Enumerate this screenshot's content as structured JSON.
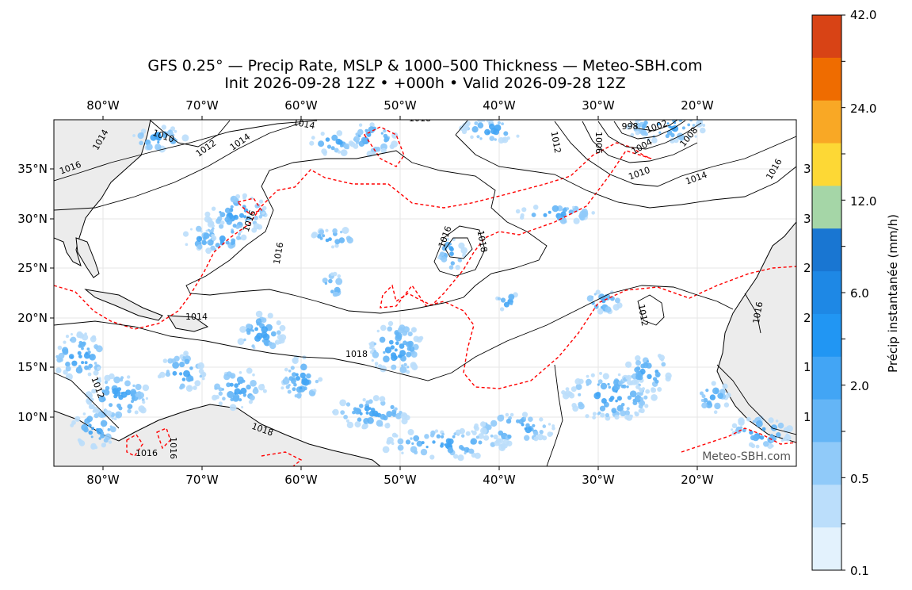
{
  "title": {
    "line1": "GFS 0.25° — Precip Rate, MSLP & 1000–500 Thickness — Meteo-SBH.com",
    "line2": "Init 2026-09-28 12Z • +000h • Valid 2026-09-28 12Z"
  },
  "map": {
    "lon_range": [
      -85,
      -10
    ],
    "lat_range": [
      5,
      40
    ],
    "lon_ticks": [
      "80°W",
      "70°W",
      "60°W",
      "50°W",
      "40°W",
      "30°W",
      "20°W"
    ],
    "lat_ticks": [
      "35°N",
      "30°N",
      "25°N",
      "20°N",
      "15°N",
      "10°N"
    ],
    "watermark": "Meteo-SBH.com",
    "land_color": "#ececec",
    "thickness_color": "#ff0000",
    "isobar_color": "#000000",
    "isobar_labels": [
      "1010",
      "1012",
      "1014",
      "1014",
      "1014",
      "1016",
      "1016",
      "1016",
      "1016",
      "1018",
      "1018",
      "1018",
      "1012",
      "1012",
      "1014",
      "1016",
      "1014",
      "1016",
      "998",
      "1002",
      "1004",
      "1006",
      "1008",
      "1010",
      "1016",
      "1012",
      "1016",
      "1018"
    ],
    "edge_labels": [
      "3",
      "3",
      "2",
      "2",
      "1",
      "1"
    ]
  },
  "colorbar": {
    "title": "Précip instantanée (mm/h)",
    "tick_labels": [
      "42.0",
      "24.0",
      "12.0",
      "6.0",
      "2.0",
      "0.5",
      "0.1"
    ],
    "colors": [
      "#e3f2fd",
      "#bbdefb",
      "#90caf9",
      "#64b5f6",
      "#42a5f5",
      "#2196f3",
      "#1e88e5",
      "#1976d2",
      "#a5d6a7",
      "#fdd835",
      "#f9a825",
      "#ef6c00",
      "#d84315"
    ]
  }
}
